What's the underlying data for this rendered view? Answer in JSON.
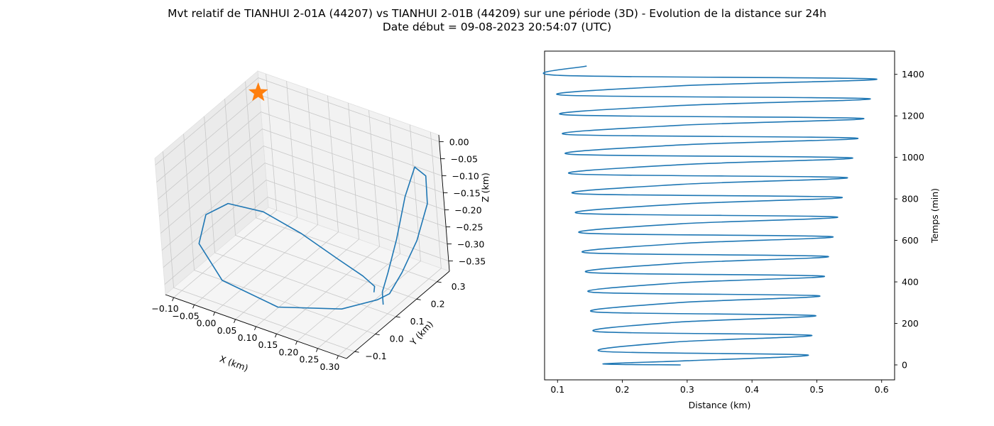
{
  "figure": {
    "title_line1": "Mvt relatif de TIANHUI 2-01A (44207) vs TIANHUI 2-01B (44209) sur une période (3D) - Evolution de la distance sur 24h",
    "title_line2": "Date début = 09-08-2023 20:54:07 (UTC)"
  },
  "chart_data": [
    {
      "type": "line3d",
      "xlabel": "X (km)",
      "ylabel": "Y (km)",
      "zlabel": "Z (km)",
      "x_ticks": [
        "−0.10",
        "−0.05",
        "0.00",
        "0.05",
        "0.10",
        "0.15",
        "0.20",
        "0.25",
        "0.30"
      ],
      "y_ticks": [
        "−0.1",
        "0.0",
        "0.1",
        "0.2",
        "0.3"
      ],
      "z_ticks": [
        "0.00",
        "−0.05",
        "−0.10",
        "−0.15",
        "−0.20",
        "−0.25",
        "−0.30",
        "−0.35"
      ],
      "xlim": [
        -0.12,
        0.32
      ],
      "ylim": [
        -0.14,
        0.36
      ],
      "zlim": [
        -0.38,
        0.02
      ],
      "grid": true,
      "series": [
        {
          "color": "#1f77b4",
          "points": [
            {
              "x": 0.285,
              "y": 0.11,
              "z": -0.365
            },
            {
              "x": 0.28,
              "y": 0.12,
              "z": -0.335
            },
            {
              "x": 0.265,
              "y": 0.18,
              "z": -0.315
            },
            {
              "x": 0.26,
              "y": 0.24,
              "z": -0.25
            },
            {
              "x": 0.262,
              "y": 0.29,
              "z": -0.15
            },
            {
              "x": 0.27,
              "y": 0.33,
              "z": -0.08
            },
            {
              "x": 0.285,
              "y": 0.35,
              "z": -0.11
            },
            {
              "x": 0.3,
              "y": 0.32,
              "z": -0.17
            },
            {
              "x": 0.305,
              "y": 0.25,
              "z": -0.24
            },
            {
              "x": 0.3,
              "y": 0.18,
              "z": -0.3
            },
            {
              "x": 0.292,
              "y": 0.13,
              "z": -0.34
            },
            {
              "x": 0.28,
              "y": 0.095,
              "z": -0.345
            },
            {
              "x": 0.23,
              "y": 0.02,
              "z": -0.355
            },
            {
              "x": 0.12,
              "y": -0.07,
              "z": -0.35
            },
            {
              "x": 0.0,
              "y": -0.095,
              "z": -0.31
            },
            {
              "x": -0.07,
              "y": -0.06,
              "z": -0.25
            },
            {
              "x": -0.08,
              "y": 0.0,
              "z": -0.2
            },
            {
              "x": -0.05,
              "y": 0.05,
              "z": -0.18
            },
            {
              "x": 0.02,
              "y": 0.08,
              "z": -0.19
            },
            {
              "x": 0.1,
              "y": 0.1,
              "z": -0.23
            },
            {
              "x": 0.18,
              "y": 0.11,
              "z": -0.275
            },
            {
              "x": 0.24,
              "y": 0.11,
              "z": -0.3
            },
            {
              "x": 0.27,
              "y": 0.105,
              "z": -0.315
            },
            {
              "x": 0.27,
              "y": 0.1,
              "z": -0.33
            }
          ]
        }
      ],
      "marker": {
        "symbol": "star",
        "color": "#ff7f0e",
        "x": -0.09,
        "y": 0.3,
        "z": 0.0
      }
    },
    {
      "type": "line",
      "xlabel": "Distance (km)",
      "ylabel": "Temps (min)",
      "xlim": [
        0.08,
        0.62
      ],
      "ylim": [
        -72,
        1512
      ],
      "x_ticks": [
        0.1,
        0.2,
        0.3,
        0.4,
        0.5,
        0.6
      ],
      "y_ticks": [
        0,
        200,
        400,
        600,
        800,
        1000,
        1200,
        1400
      ],
      "yaxis_position": "right",
      "grid": false,
      "series": [
        {
          "color": "#1f77b4",
          "period_min": 95,
          "start_distance": 0.29,
          "end_distance": 0.145,
          "end_time": 1440,
          "min_distance": {
            "start": 0.17,
            "end": 0.102
          },
          "max_distance": {
            "start": 0.485,
            "end": 0.6
          },
          "points": [
            {
              "t": 0,
              "d": 0.29
            },
            {
              "t": 5,
              "d": 0.17
            },
            {
              "t": 20,
              "d": 0.3
            },
            {
              "t": 48,
              "d": 0.485
            },
            {
              "t": 65,
              "d": 0.17
            },
            {
              "t": 110,
              "d": 0.28
            },
            {
              "t": 143,
              "d": 0.491
            },
            {
              "t": 160,
              "d": 0.162
            },
            {
              "t": 205,
              "d": 0.28
            },
            {
              "t": 238,
              "d": 0.497
            },
            {
              "t": 255,
              "d": 0.158
            },
            {
              "t": 300,
              "d": 0.285
            },
            {
              "t": 333,
              "d": 0.503
            },
            {
              "t": 350,
              "d": 0.154
            },
            {
              "t": 395,
              "d": 0.285
            },
            {
              "t": 428,
              "d": 0.51
            },
            {
              "t": 445,
              "d": 0.15
            },
            {
              "t": 490,
              "d": 0.29
            },
            {
              "t": 523,
              "d": 0.516
            },
            {
              "t": 540,
              "d": 0.145
            },
            {
              "t": 585,
              "d": 0.29
            },
            {
              "t": 618,
              "d": 0.523
            },
            {
              "t": 635,
              "d": 0.14
            },
            {
              "t": 680,
              "d": 0.29
            },
            {
              "t": 713,
              "d": 0.53
            },
            {
              "t": 730,
              "d": 0.135
            },
            {
              "t": 775,
              "d": 0.29
            },
            {
              "t": 808,
              "d": 0.537
            },
            {
              "t": 825,
              "d": 0.13
            },
            {
              "t": 870,
              "d": 0.29
            },
            {
              "t": 903,
              "d": 0.545
            },
            {
              "t": 920,
              "d": 0.125
            },
            {
              "t": 965,
              "d": 0.29
            },
            {
              "t": 998,
              "d": 0.553
            },
            {
              "t": 1015,
              "d": 0.12
            },
            {
              "t": 1060,
              "d": 0.29
            },
            {
              "t": 1093,
              "d": 0.561
            },
            {
              "t": 1110,
              "d": 0.116
            },
            {
              "t": 1155,
              "d": 0.29
            },
            {
              "t": 1188,
              "d": 0.57
            },
            {
              "t": 1205,
              "d": 0.112
            },
            {
              "t": 1250,
              "d": 0.29
            },
            {
              "t": 1283,
              "d": 0.58
            },
            {
              "t": 1300,
              "d": 0.108
            },
            {
              "t": 1345,
              "d": 0.29
            },
            {
              "t": 1378,
              "d": 0.59
            },
            {
              "t": 1395,
              "d": 0.104
            },
            {
              "t": 1440,
              "d": 0.145
            }
          ]
        }
      ]
    }
  ]
}
